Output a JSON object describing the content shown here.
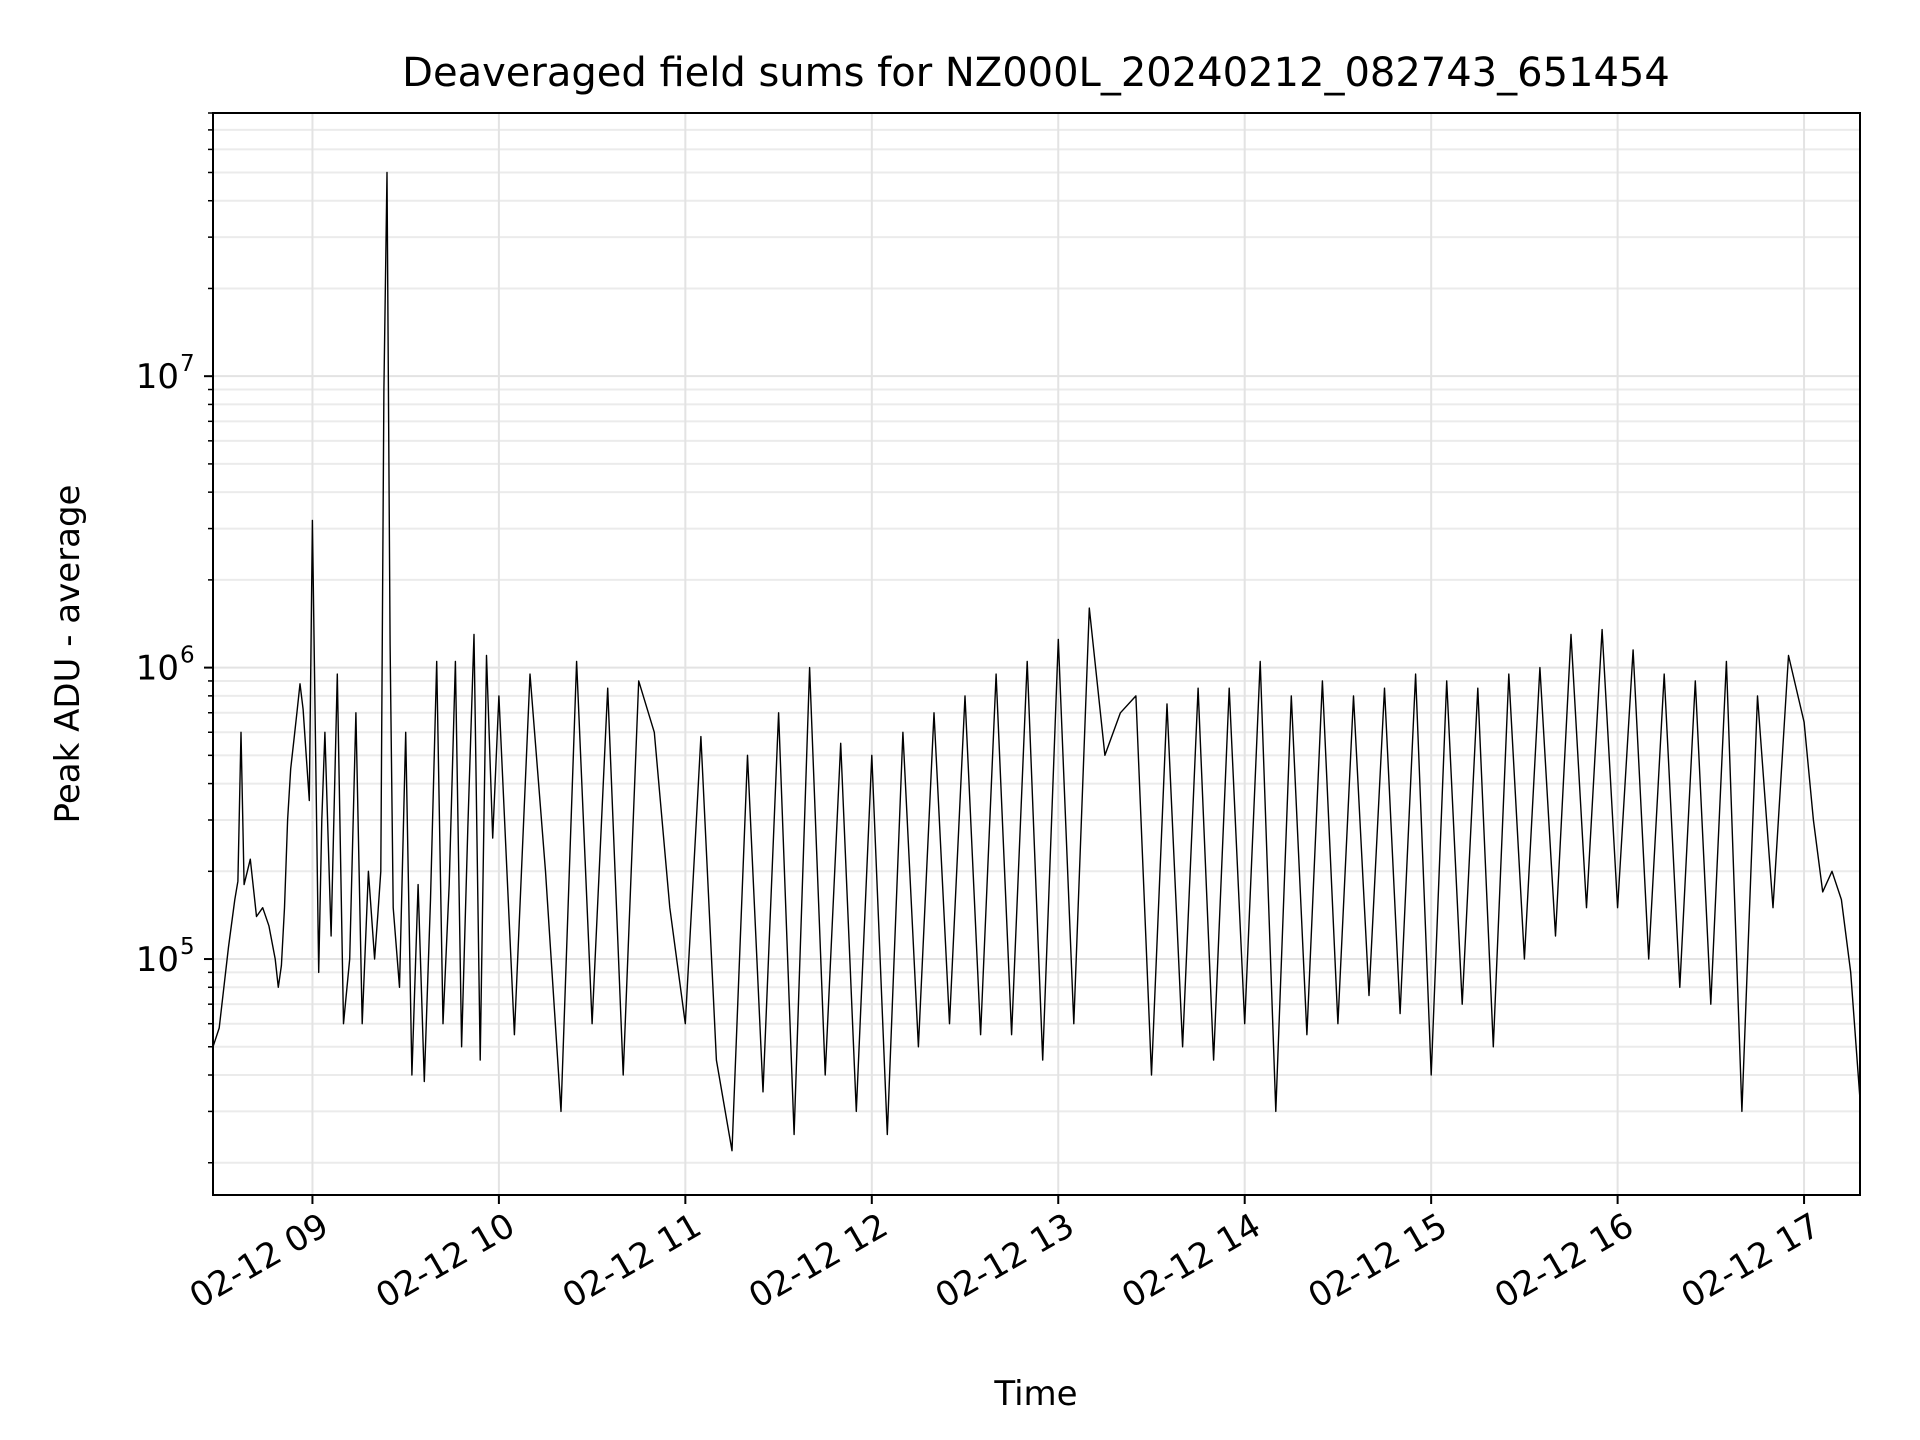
{
  "chart_data": {
    "type": "line",
    "title": "Deaveraged field sums for NZ000L_20240212_082743_651454",
    "xlabel": "Time",
    "ylabel": "Peak ADU - average",
    "x_range": [
      "2024-02-12 08:28",
      "2024-02-12 17:18"
    ],
    "y_range": [
      15500,
      80000000
    ],
    "y_scale": "log",
    "grid": true,
    "legend": "none",
    "x_ticks": [
      {
        "label": "02-12 09",
        "value": "2024-02-12 09:00"
      },
      {
        "label": "02-12 10",
        "value": "2024-02-12 10:00"
      },
      {
        "label": "02-12 11",
        "value": "2024-02-12 11:00"
      },
      {
        "label": "02-12 12",
        "value": "2024-02-12 12:00"
      },
      {
        "label": "02-12 13",
        "value": "2024-02-12 13:00"
      },
      {
        "label": "02-12 14",
        "value": "2024-02-12 14:00"
      },
      {
        "label": "02-12 15",
        "value": "2024-02-12 15:00"
      },
      {
        "label": "02-12 16",
        "value": "2024-02-12 16:00"
      },
      {
        "label": "02-12 17",
        "value": "2024-02-12 17:00"
      }
    ],
    "y_ticks": [
      {
        "base": "10",
        "exp": "5",
        "value": 100000
      },
      {
        "base": "10",
        "exp": "6",
        "value": 1000000
      },
      {
        "base": "10",
        "exp": "7",
        "value": 10000000
      }
    ],
    "line_color": "#000000",
    "series": [
      {
        "x": [
          "2024-02-12 08:28",
          "2024-02-12 08:30",
          "2024-02-12 08:33",
          "2024-02-12 08:35",
          "2024-02-12 08:36",
          "2024-02-12 08:37",
          "2024-02-12 08:38",
          "2024-02-12 08:40",
          "2024-02-12 08:42",
          "2024-02-12 08:44",
          "2024-02-12 08:46",
          "2024-02-12 08:48",
          "2024-02-12 08:49",
          "2024-02-12 08:50",
          "2024-02-12 08:51",
          "2024-02-12 08:52",
          "2024-02-12 08:53",
          "2024-02-12 08:54",
          "2024-02-12 08:55",
          "2024-02-12 08:56",
          "2024-02-12 08:57",
          "2024-02-12 08:58",
          "2024-02-12 08:59",
          "2024-02-12 09:00",
          "2024-02-12 09:02",
          "2024-02-12 09:03",
          "2024-02-12 09:04",
          "2024-02-12 09:06",
          "2024-02-12 09:08",
          "2024-02-12 09:10",
          "2024-02-12 09:12",
          "2024-02-12 09:14",
          "2024-02-12 09:16",
          "2024-02-12 09:18",
          "2024-02-12 09:20",
          "2024-02-12 09:21",
          "2024-02-12 09:22",
          "2024-02-12 09:23",
          "2024-02-12 09:24",
          "2024-02-12 09:25",
          "2024-02-12 09:26",
          "2024-02-12 09:28",
          "2024-02-12 09:30",
          "2024-02-12 09:32",
          "2024-02-12 09:34",
          "2024-02-12 09:36",
          "2024-02-12 09:38",
          "2024-02-12 09:40",
          "2024-02-12 09:42",
          "2024-02-12 09:44",
          "2024-02-12 09:46",
          "2024-02-12 09:48",
          "2024-02-12 09:50",
          "2024-02-12 09:52",
          "2024-02-12 09:54",
          "2024-02-12 09:56",
          "2024-02-12 09:58",
          "2024-02-12 10:00",
          "2024-02-12 10:05",
          "2024-02-12 10:10",
          "2024-02-12 10:15",
          "2024-02-12 10:20",
          "2024-02-12 10:25",
          "2024-02-12 10:30",
          "2024-02-12 10:35",
          "2024-02-12 10:40",
          "2024-02-12 10:45",
          "2024-02-12 10:50",
          "2024-02-12 10:55",
          "2024-02-12 11:00",
          "2024-02-12 11:05",
          "2024-02-12 11:10",
          "2024-02-12 11:15",
          "2024-02-12 11:20",
          "2024-02-12 11:25",
          "2024-02-12 11:30",
          "2024-02-12 11:35",
          "2024-02-12 11:40",
          "2024-02-12 11:45",
          "2024-02-12 11:50",
          "2024-02-12 11:55",
          "2024-02-12 12:00",
          "2024-02-12 12:05",
          "2024-02-12 12:10",
          "2024-02-12 12:15",
          "2024-02-12 12:20",
          "2024-02-12 12:25",
          "2024-02-12 12:30",
          "2024-02-12 12:35",
          "2024-02-12 12:40",
          "2024-02-12 12:45",
          "2024-02-12 12:50",
          "2024-02-12 12:55",
          "2024-02-12 13:00",
          "2024-02-12 13:05",
          "2024-02-12 13:10",
          "2024-02-12 13:15",
          "2024-02-12 13:20",
          "2024-02-12 13:25",
          "2024-02-12 13:30",
          "2024-02-12 13:35",
          "2024-02-12 13:40",
          "2024-02-12 13:45",
          "2024-02-12 13:50",
          "2024-02-12 13:55",
          "2024-02-12 14:00",
          "2024-02-12 14:05",
          "2024-02-12 14:10",
          "2024-02-12 14:15",
          "2024-02-12 14:20",
          "2024-02-12 14:25",
          "2024-02-12 14:30",
          "2024-02-12 14:35",
          "2024-02-12 14:40",
          "2024-02-12 14:45",
          "2024-02-12 14:50",
          "2024-02-12 14:55",
          "2024-02-12 15:00",
          "2024-02-12 15:05",
          "2024-02-12 15:10",
          "2024-02-12 15:15",
          "2024-02-12 15:20",
          "2024-02-12 15:25",
          "2024-02-12 15:30",
          "2024-02-12 15:35",
          "2024-02-12 15:40",
          "2024-02-12 15:45",
          "2024-02-12 15:50",
          "2024-02-12 15:55",
          "2024-02-12 16:00",
          "2024-02-12 16:05",
          "2024-02-12 16:10",
          "2024-02-12 16:15",
          "2024-02-12 16:20",
          "2024-02-12 16:25",
          "2024-02-12 16:30",
          "2024-02-12 16:35",
          "2024-02-12 16:40",
          "2024-02-12 16:45",
          "2024-02-12 16:50",
          "2024-02-12 16:55",
          "2024-02-12 17:00",
          "2024-02-12 17:03",
          "2024-02-12 17:06",
          "2024-02-12 17:09",
          "2024-02-12 17:12",
          "2024-02-12 17:15",
          "2024-02-12 17:18"
        ],
        "y": [
          50000,
          58000,
          110000,
          160000,
          185000,
          600000,
          180000,
          220000,
          140000,
          150000,
          130000,
          100000,
          80000,
          95000,
          150000,
          300000,
          450000,
          560000,
          700000,
          880000,
          720000,
          500000,
          350000,
          3200000,
          90000,
          300000,
          600000,
          120000,
          950000,
          60000,
          100000,
          700000,
          60000,
          200000,
          100000,
          140000,
          200000,
          9000000,
          50000000,
          1200000,
          150000,
          80000,
          600000,
          40000,
          180000,
          38000,
          160000,
          1050000,
          60000,
          180000,
          1050000,
          50000,
          280000,
          1300000,
          45000,
          1100000,
          260000,
          800000,
          55000,
          950000,
          200000,
          30000,
          1050000,
          60000,
          850000,
          40000,
          900000,
          600000,
          150000,
          60000,
          580000,
          45000,
          22000,
          500000,
          35000,
          700000,
          25000,
          1000000,
          40000,
          550000,
          30000,
          500000,
          25000,
          600000,
          50000,
          700000,
          60000,
          800000,
          55000,
          950000,
          55000,
          1050000,
          45000,
          1250000,
          60000,
          1600000,
          500000,
          700000,
          800000,
          40000,
          750000,
          50000,
          850000,
          45000,
          850000,
          60000,
          1050000,
          30000,
          800000,
          55000,
          900000,
          60000,
          800000,
          75000,
          850000,
          65000,
          950000,
          40000,
          900000,
          70000,
          850000,
          50000,
          950000,
          100000,
          1000000,
          120000,
          1300000,
          150000,
          1350000,
          150000,
          1150000,
          100000,
          950000,
          80000,
          900000,
          70000,
          1050000,
          30000,
          800000,
          150000,
          1100000,
          650000,
          300000,
          170000,
          200000,
          160000,
          90000,
          33000
        ]
      }
    ]
  }
}
